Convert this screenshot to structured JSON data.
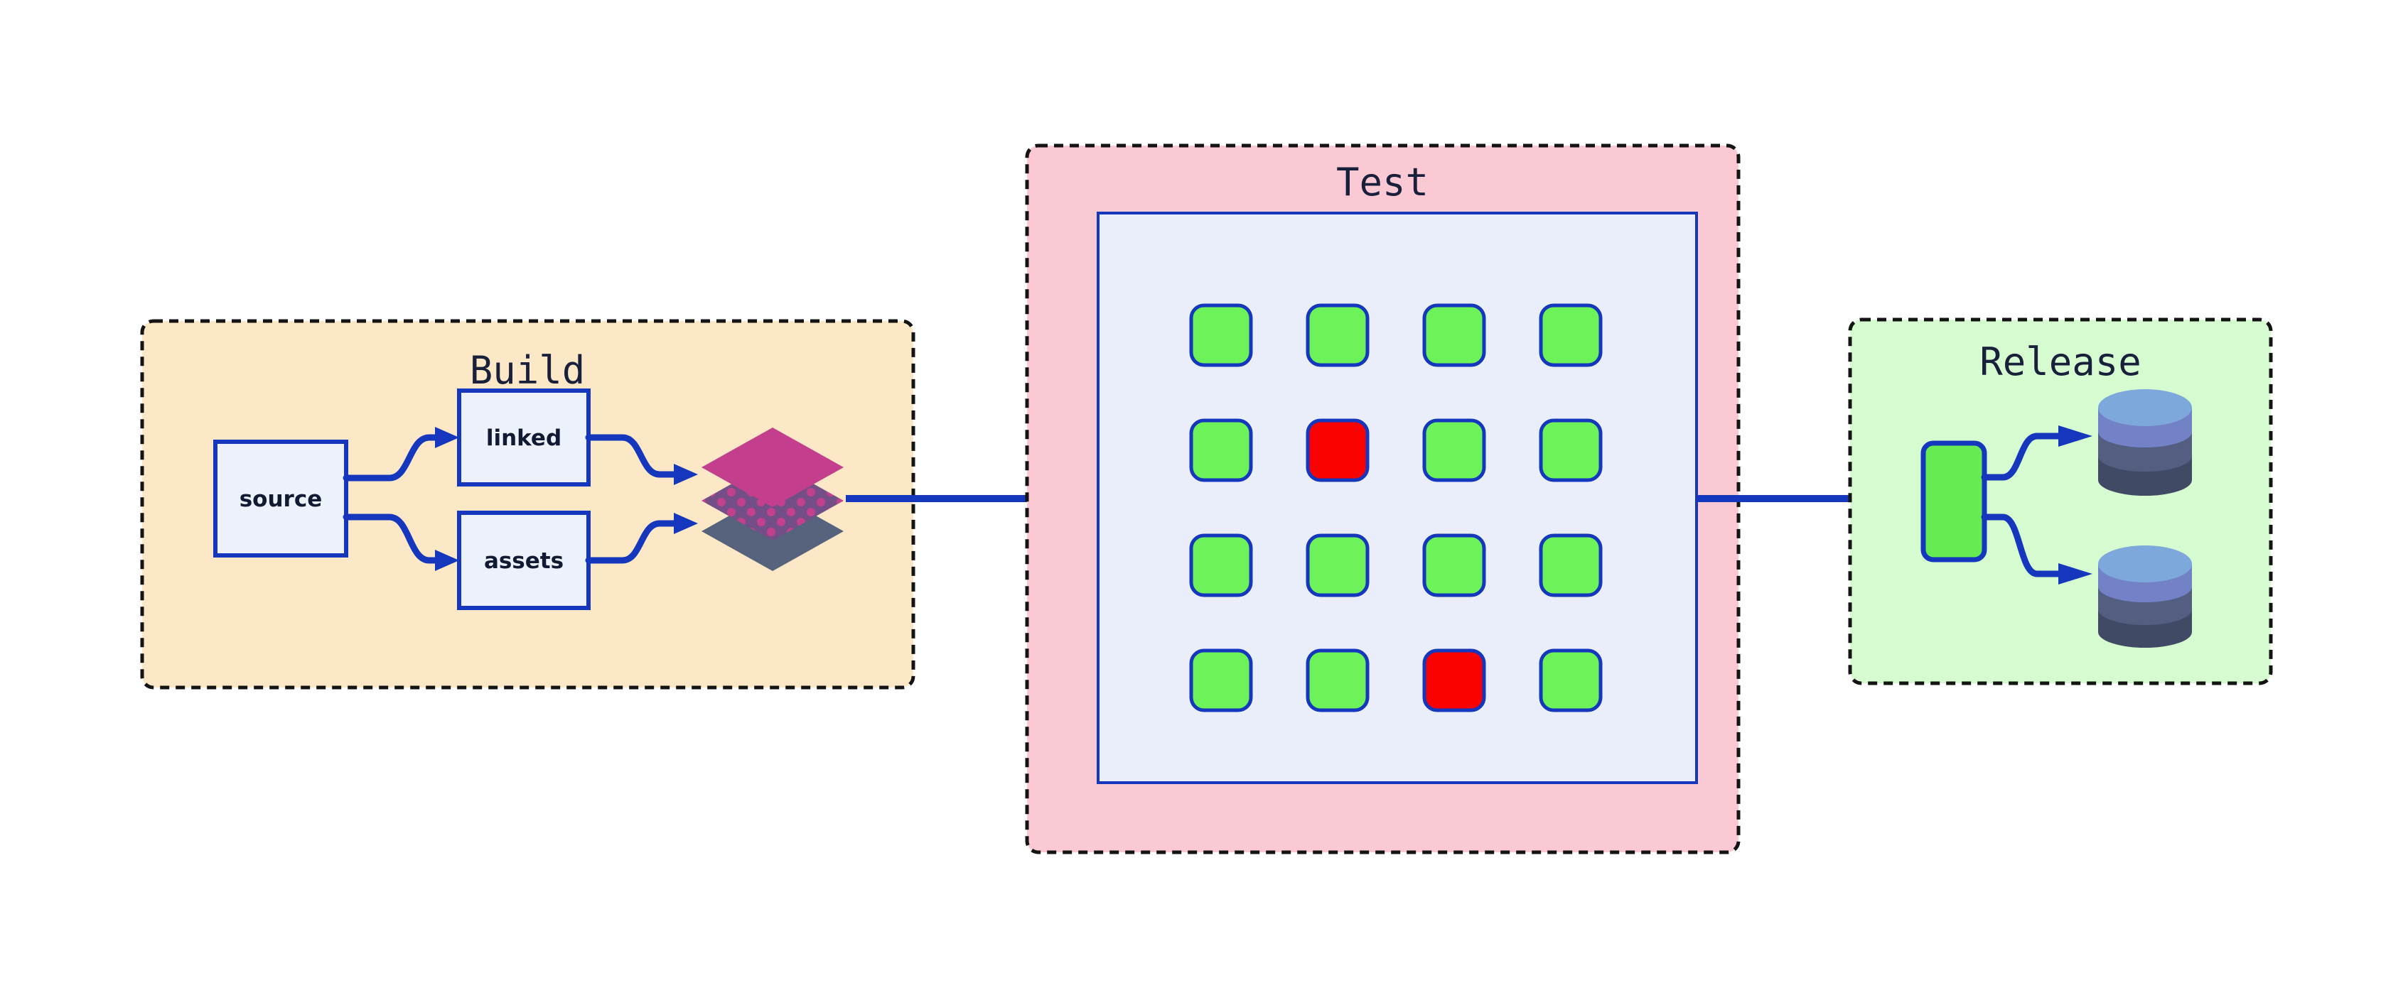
{
  "diagram_title": "build-test-release-pipeline",
  "colors": {
    "page_bg": "#ffffff",
    "accent_blue": "#1437BD",
    "dashed_border": "#141414",
    "title_text": "#19203B",
    "label_text": "#101A33",
    "node_fill": "#EDF1FC",
    "build_bg": "#FCE8C6",
    "test_bg": "#FBC9D4",
    "release_bg": "#D6FBD0",
    "test_panel_bg": "#EAEEFB",
    "test_panel_border": "#1437BD",
    "pass_green": "#6EF25A",
    "fail_red": "#FB0202",
    "release_node_green": "#66EC52",
    "layer_top": "#C33E8C",
    "layer_middle": "#744E86",
    "layer_dot": "#C3408D",
    "layer_bottom": "#57627C",
    "db_lid": "#7CA8DB",
    "db_band_1": "#7381C6",
    "db_band_2": "#535E80",
    "db_band_3": "#414A64"
  },
  "stages": {
    "build": {
      "title": "Build",
      "nodes": [
        {
          "id": "source",
          "label": "source"
        },
        {
          "id": "linked",
          "label": "linked"
        },
        {
          "id": "assets",
          "label": "assets"
        }
      ],
      "artifact_icon": "layers-icon"
    },
    "test": {
      "title": "Test",
      "grid": {
        "rows": 4,
        "cols": 4,
        "pass_count": 14,
        "fail_count": 2,
        "cells": [
          [
            "pass",
            "pass",
            "pass",
            "pass"
          ],
          [
            "pass",
            "fail",
            "pass",
            "pass"
          ],
          [
            "pass",
            "pass",
            "pass",
            "pass"
          ],
          [
            "pass",
            "pass",
            "fail",
            "pass"
          ]
        ]
      }
    },
    "release": {
      "title": "Release",
      "targets": [
        {
          "id": "database-1",
          "icon": "database-icon"
        },
        {
          "id": "database-2",
          "icon": "database-icon"
        }
      ]
    }
  }
}
